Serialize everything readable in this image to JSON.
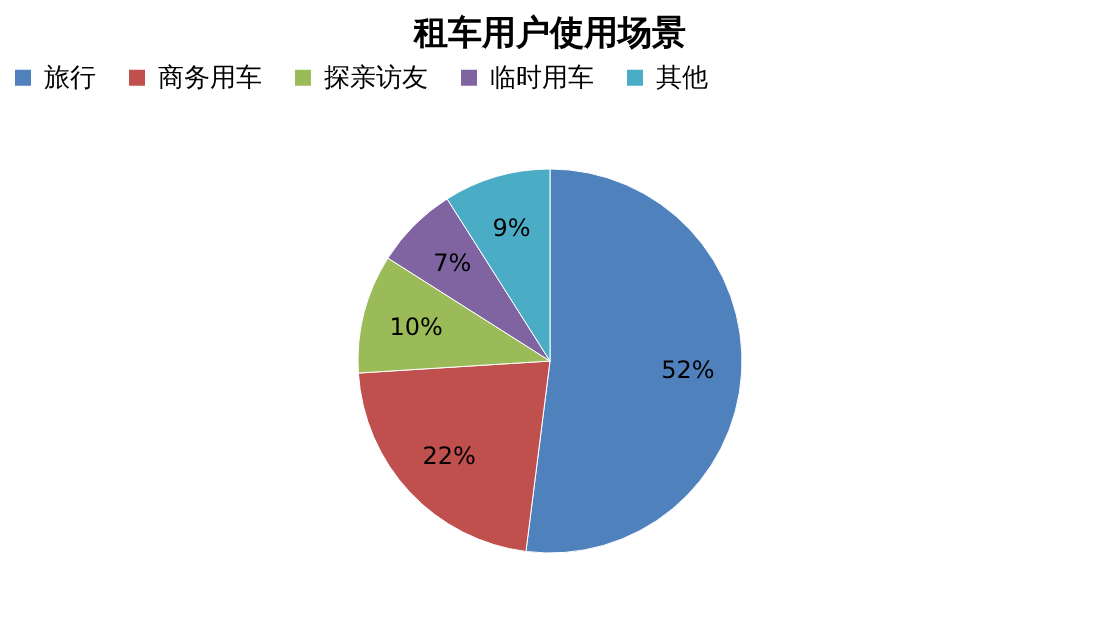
{
  "chart_data": {
    "type": "pie",
    "title": "租车用户使用场景",
    "categories": [
      "旅行",
      "商务用车",
      "探亲访友",
      "临时用车",
      "其他"
    ],
    "values": [
      52,
      22,
      10,
      7,
      9
    ],
    "value_labels": [
      "52%",
      "22%",
      "10%",
      "7%",
      "9%"
    ],
    "colors": [
      "#4f81bd",
      "#c0504d",
      "#9bbb59",
      "#8064a2",
      "#4bacc6"
    ],
    "legend": "top"
  }
}
